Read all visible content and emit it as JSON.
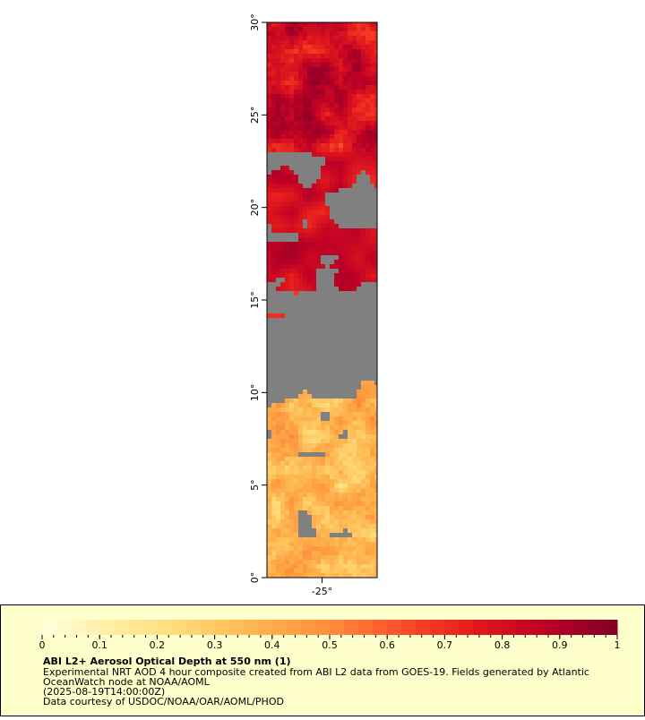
{
  "map": {
    "ylim": [
      0,
      30
    ],
    "xlim": [
      -28,
      -22
    ],
    "yticks": [
      {
        "value": 0,
        "label": "0°"
      },
      {
        "value": 5,
        "label": "5°"
      },
      {
        "value": 10,
        "label": "10°"
      },
      {
        "value": 15,
        "label": "15°"
      },
      {
        "value": 20,
        "label": "20°"
      },
      {
        "value": 25,
        "label": "25°"
      },
      {
        "value": 30,
        "label": "30°"
      }
    ],
    "xticks": [
      {
        "value": -25,
        "label": "-25°"
      }
    ],
    "missing_color": "#808080"
  },
  "colorbar": {
    "range": [
      0,
      1
    ],
    "ticks": [
      0,
      0.1,
      0.2,
      0.3,
      0.4,
      0.5,
      0.6,
      0.7,
      0.8,
      0.9,
      1
    ],
    "colors": [
      "#ffffe0",
      "#ffeda0",
      "#fed976",
      "#feb24c",
      "#fd8d3c",
      "#fc4e2a",
      "#e31a1c",
      "#bd0026",
      "#800026"
    ]
  },
  "legend": {
    "title": "ABI L2+ Aerosol Optical Depth at 550 nm (1)",
    "lines": [
      "Experimental NRT AOD 4 hour composite created from ABI L2 data from GOES-19. Fields generated by Atlantic",
      "OceanWatch node at NOAA/AOML",
      "(2025-08-19T14:00:00Z)",
      "Data courtesy of USDOC/NOAA/OAR/AOML/PHOD"
    ]
  }
}
